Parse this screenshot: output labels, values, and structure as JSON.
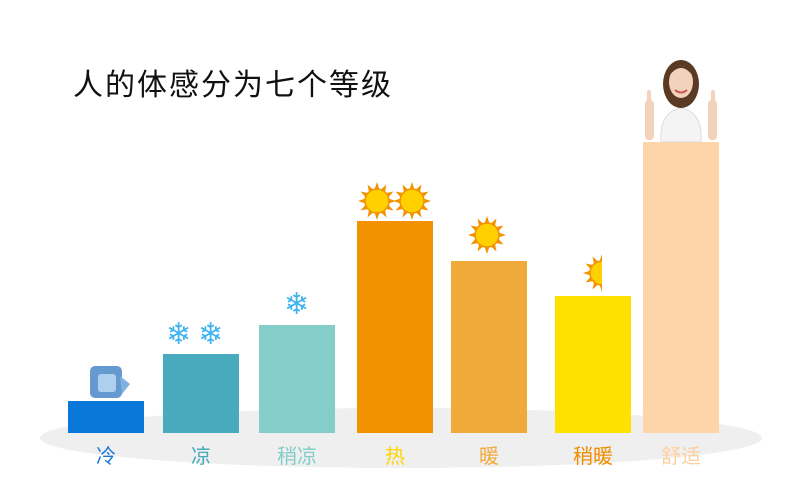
{
  "title": "人的体感分为七个等级",
  "chart_data": {
    "type": "bar",
    "title": "人的体感分为七个等级",
    "categories": [
      "冷",
      "凉",
      "稍凉",
      "热",
      "暖",
      "稍暖",
      "舒适"
    ],
    "values": [
      11,
      27,
      37,
      73,
      59,
      47,
      100
    ],
    "bar_colors": [
      "#0a78d8",
      "#48abbd",
      "#84cdc8",
      "#f39200",
      "#f0aa3a",
      "#ffe100",
      "#fdd5a8"
    ],
    "label_colors": [
      "#1a7ad8",
      "#48abbd",
      "#84cdc8",
      "#ffd500",
      "#f0aa3a",
      "#f08c00",
      "#fdd0a0"
    ],
    "decorations": [
      "ice-cube-icon",
      "snowflake-icon x2",
      "snowflake-icon x1",
      "sun-icon x2",
      "sun-icon x1",
      "half-sun-icon",
      "thumbs-up-woman-image"
    ],
    "ylim": [
      0,
      100
    ],
    "grid": false,
    "legend": "none"
  }
}
